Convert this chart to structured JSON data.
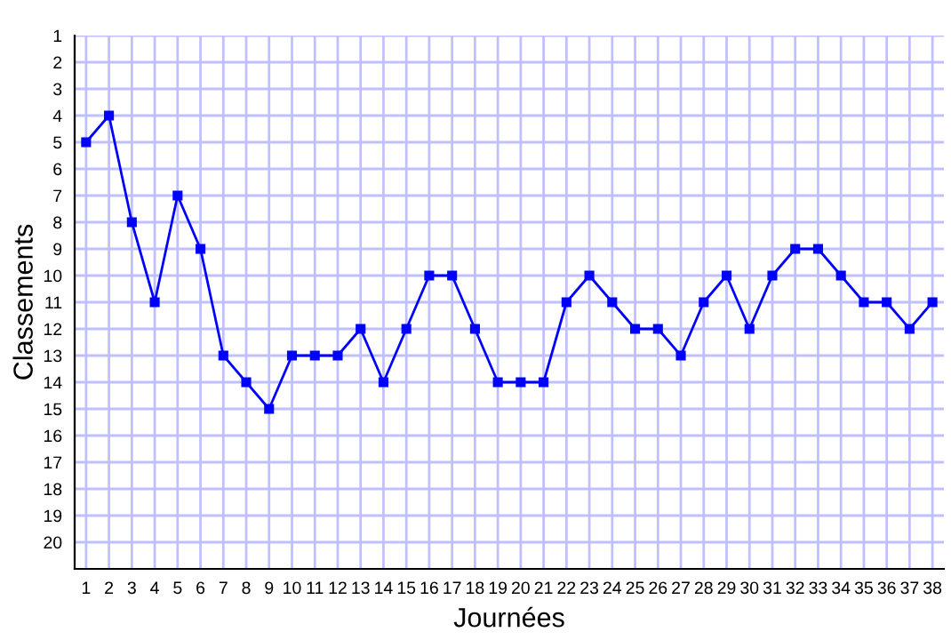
{
  "chart_data": {
    "type": "line",
    "xlabel": "Journées",
    "ylabel": "Classements",
    "x": [
      1,
      2,
      3,
      4,
      5,
      6,
      7,
      8,
      9,
      10,
      11,
      12,
      13,
      14,
      15,
      16,
      17,
      18,
      19,
      20,
      21,
      22,
      23,
      24,
      25,
      26,
      27,
      28,
      29,
      30,
      31,
      32,
      33,
      34,
      35,
      36,
      37,
      38
    ],
    "series": [
      {
        "color": "#0000ff",
        "values": [
          5,
          4,
          8,
          11,
          7,
          9,
          13,
          14,
          15,
          13,
          13,
          13,
          12,
          14,
          12,
          10,
          10,
          12,
          14,
          14,
          14,
          11,
          10,
          11,
          12,
          12,
          13,
          11,
          10,
          12,
          10,
          9,
          9,
          10,
          11,
          11,
          12,
          11
        ]
      }
    ],
    "xlim": [
      0.5,
      38.5
    ],
    "xticks": [
      1,
      2,
      3,
      4,
      5,
      6,
      7,
      8,
      9,
      10,
      11,
      12,
      13,
      14,
      15,
      16,
      17,
      18,
      19,
      20,
      21,
      22,
      23,
      24,
      25,
      26,
      27,
      28,
      29,
      30,
      31,
      32,
      33,
      34,
      35,
      36,
      37,
      38
    ],
    "ylim": [
      21,
      1
    ],
    "yticks": [
      1,
      2,
      3,
      4,
      5,
      6,
      7,
      8,
      9,
      10,
      11,
      12,
      13,
      14,
      15,
      16,
      17,
      18,
      19,
      20
    ],
    "grid": true,
    "marker": "square",
    "line_style": "solid"
  }
}
